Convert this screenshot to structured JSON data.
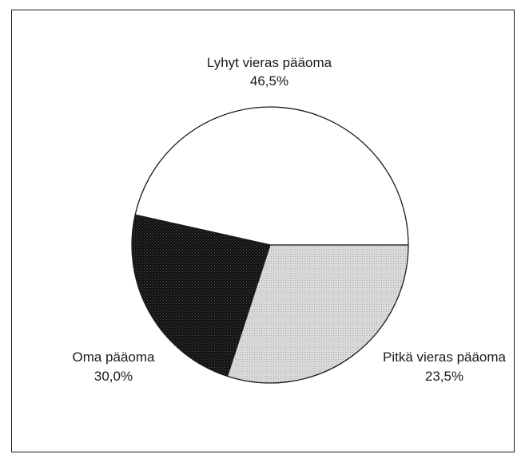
{
  "chart_data": {
    "type": "pie",
    "title": "",
    "slices": [
      {
        "label": "Lyhyt vieras pääoma",
        "value_text": "46,5%",
        "value": 46.5,
        "color": "#ffffff",
        "fill": "none"
      },
      {
        "label": "Pitkä vieras pääoma",
        "value_text": "23,5%",
        "value": 23.5,
        "color": "#1e1e1e",
        "fill": "dark-stipple"
      },
      {
        "label": "Oma pääoma",
        "value_text": "30,0%",
        "value": 30.0,
        "color": "#d4d4d4",
        "fill": "light-stipple"
      }
    ],
    "start_angle_deg": 0,
    "direction": "clockwise",
    "outline_color": "#1a1a1a",
    "legend": "none"
  }
}
